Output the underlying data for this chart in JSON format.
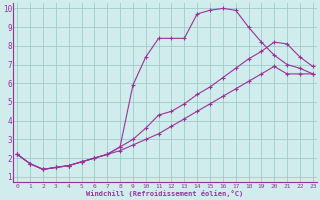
{
  "xlabel": "Windchill (Refroidissement éolien,°C)",
  "bg_color": "#d0ecec",
  "grid_color": "#a0cccc",
  "line_color": "#993399",
  "xlim_min": -0.3,
  "xlim_max": 23.3,
  "ylim_min": 0.7,
  "ylim_max": 10.3,
  "xticks": [
    0,
    1,
    2,
    3,
    4,
    5,
    6,
    7,
    8,
    9,
    10,
    11,
    12,
    13,
    14,
    15,
    16,
    17,
    18,
    19,
    20,
    21,
    22,
    23
  ],
  "yticks": [
    1,
    2,
    3,
    4,
    5,
    6,
    7,
    8,
    9,
    10
  ],
  "line1_x": [
    0,
    1,
    2,
    3,
    4,
    5,
    6,
    7,
    8,
    9,
    10,
    11,
    12,
    13,
    14,
    15,
    16,
    17,
    18,
    19,
    20,
    21,
    22,
    23
  ],
  "line1_y": [
    2.2,
    1.7,
    1.4,
    1.5,
    1.6,
    1.8,
    2.0,
    2.2,
    2.6,
    5.9,
    7.4,
    8.4,
    8.4,
    8.4,
    9.7,
    9.9,
    10.0,
    9.9,
    9.0,
    8.2,
    7.5,
    7.0,
    6.8,
    6.5
  ],
  "line2_x": [
    0,
    1,
    2,
    3,
    4,
    5,
    6,
    7,
    8,
    9,
    10,
    11,
    12,
    13,
    14,
    15,
    16,
    17,
    18,
    19,
    20,
    21,
    22,
    23
  ],
  "line2_y": [
    2.2,
    1.7,
    1.4,
    1.5,
    1.6,
    1.8,
    2.0,
    2.2,
    2.6,
    3.0,
    3.6,
    4.3,
    4.5,
    4.9,
    5.4,
    5.8,
    6.3,
    6.8,
    7.3,
    7.7,
    8.2,
    8.1,
    7.4,
    6.9
  ],
  "line3_x": [
    0,
    1,
    2,
    3,
    4,
    5,
    6,
    7,
    8,
    9,
    10,
    11,
    12,
    13,
    14,
    15,
    16,
    17,
    18,
    19,
    20,
    21,
    22,
    23
  ],
  "line3_y": [
    2.2,
    1.7,
    1.4,
    1.5,
    1.6,
    1.8,
    2.0,
    2.2,
    2.4,
    2.7,
    3.0,
    3.3,
    3.7,
    4.1,
    4.5,
    4.9,
    5.3,
    5.7,
    6.1,
    6.5,
    6.9,
    6.5,
    6.5,
    6.5
  ]
}
